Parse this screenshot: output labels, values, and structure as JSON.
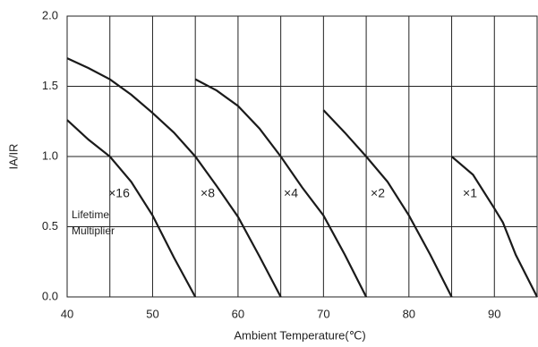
{
  "chart_data": {
    "type": "line",
    "x_label": "Ambient Temperature(℃)",
    "y_label": "IA/IR",
    "xlim": [
      40,
      95
    ],
    "ylim": [
      0,
      2
    ],
    "xticks": [
      40,
      50,
      60,
      70,
      80,
      90
    ],
    "minor_xticks": [
      45,
      55,
      65,
      75,
      85
    ],
    "yticks": [
      {
        "value": 0,
        "label": "0.0"
      },
      {
        "value": 0.5,
        "label": "0.5"
      },
      {
        "value": 1,
        "label": "1.0"
      },
      {
        "value": 1.5,
        "label": "1.5"
      },
      {
        "value": 2,
        "label": "2.0"
      }
    ],
    "grid": true,
    "series": [
      {
        "color": "#1a1a1a",
        "x": [
          40,
          42.5,
          45,
          47.5,
          50,
          52.5,
          55,
          57.5,
          60,
          62.5,
          65
        ],
        "values": [
          1.7,
          1.63,
          1.55,
          1.44,
          1.31,
          1.17,
          1.0,
          0.79,
          0.57,
          0.29,
          0
        ]
      },
      {
        "color": "#1a1a1a",
        "x": [
          40,
          42.5,
          45,
          47.5,
          50,
          52.5,
          55
        ],
        "values": [
          1.26,
          1.12,
          1.0,
          0.82,
          0.58,
          0.28,
          0
        ]
      },
      {
        "color": "#1a1a1a",
        "x": [
          55,
          57.5,
          60,
          62.5,
          65,
          67.5,
          70,
          72.5,
          75
        ],
        "values": [
          1.55,
          1.47,
          1.36,
          1.2,
          1.0,
          0.78,
          0.58,
          0.3,
          0
        ]
      },
      {
        "color": "#1a1a1a",
        "x": [
          70,
          72.5,
          75,
          77.5,
          80,
          82.5,
          85
        ],
        "values": [
          1.33,
          1.17,
          1.0,
          0.82,
          0.58,
          0.3,
          0
        ]
      },
      {
        "color": "#1a1a1a",
        "x": [
          85,
          87.5,
          90,
          91,
          92.5,
          95
        ],
        "values": [
          1.0,
          0.87,
          0.63,
          0.53,
          0.3,
          0
        ]
      }
    ],
    "annotations": [
      "×16",
      "×8",
      "×4",
      "×2",
      "×1",
      "Lifetime",
      "Multiplier"
    ]
  }
}
